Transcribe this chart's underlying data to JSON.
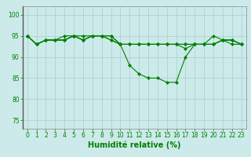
{
  "x": [
    0,
    1,
    2,
    3,
    4,
    5,
    6,
    7,
    8,
    9,
    10,
    11,
    12,
    13,
    14,
    15,
    16,
    17,
    18,
    19,
    20,
    21,
    22,
    23
  ],
  "series": [
    [
      95,
      93,
      94,
      94,
      94,
      95,
      94,
      95,
      95,
      95,
      93,
      93,
      93,
      93,
      93,
      93,
      93,
      93,
      93,
      93,
      93,
      94,
      94,
      93
    ],
    [
      95,
      93,
      94,
      94,
      95,
      95,
      95,
      95,
      95,
      95,
      93,
      88,
      86,
      85,
      85,
      84,
      84,
      90,
      93,
      93,
      95,
      94,
      93,
      93
    ],
    [
      95,
      93,
      94,
      94,
      94,
      95,
      94,
      95,
      95,
      94,
      93,
      93,
      93,
      93,
      93,
      93,
      93,
      92,
      93,
      93,
      93,
      94,
      94,
      93
    ],
    [
      95,
      93,
      94,
      94,
      94,
      95,
      94,
      95,
      95,
      94,
      93,
      93,
      93,
      93,
      93,
      93,
      93,
      93,
      93,
      93,
      93,
      94,
      94,
      93
    ]
  ],
  "line_color": "#008000",
  "marker": "D",
  "markersize": 2,
  "linewidth": 0.8,
  "background_color": "#cceaea",
  "grid_color": "#aacccc",
  "xlabel": "Humidité relative (%)",
  "xlabel_color": "#008000",
  "xlabel_fontsize": 7,
  "tick_color": "#008000",
  "tick_fontsize": 5.5,
  "ylim": [
    73,
    102
  ],
  "yticks": [
    75,
    80,
    85,
    90,
    95,
    100
  ],
  "xlim": [
    -0.5,
    23.5
  ],
  "xticks": [
    0,
    1,
    2,
    3,
    4,
    5,
    6,
    7,
    8,
    9,
    10,
    11,
    12,
    13,
    14,
    15,
    16,
    17,
    18,
    19,
    20,
    21,
    22,
    23
  ]
}
